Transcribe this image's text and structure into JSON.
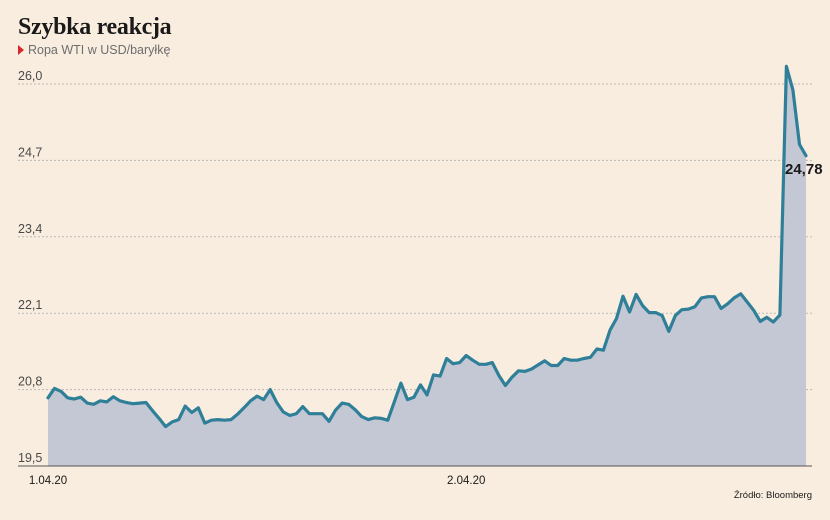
{
  "title": "Szybka reakcja",
  "subtitle": "Ropa WTI w USD/baryłkę",
  "source": "Źródło: Bloomberg",
  "colors": {
    "line": "#2f7f98",
    "fill": "#c3c8d4",
    "grid": "#b9b9b9",
    "marker": "#d9272e",
    "background": "#f9ede0"
  },
  "chart_data": {
    "type": "area",
    "ylim": [
      19.5,
      26.4
    ],
    "yticks": [
      "19,5",
      "20,8",
      "22,1",
      "23,4",
      "24,7",
      "26,0"
    ],
    "ytick_values": [
      19.5,
      20.8,
      22.1,
      23.4,
      24.7,
      26.0
    ],
    "xtick_labels": [
      {
        "index": 0,
        "label": "1.04.20"
      },
      {
        "index": 64,
        "label": "2.04.20"
      }
    ],
    "last_value_label": "24,78",
    "grid": true,
    "series": [
      {
        "values": [
          20.66,
          20.82,
          20.77,
          20.66,
          20.64,
          20.67,
          20.57,
          20.55,
          20.61,
          20.59,
          20.68,
          20.61,
          20.58,
          20.56,
          20.57,
          20.58,
          20.44,
          20.31,
          20.17,
          20.25,
          20.29,
          20.52,
          20.41,
          20.49,
          20.23,
          20.28,
          20.29,
          20.28,
          20.29,
          20.38,
          20.49,
          20.61,
          20.69,
          20.63,
          20.8,
          20.58,
          20.42,
          20.36,
          20.39,
          20.51,
          20.39,
          20.39,
          20.39,
          20.26,
          20.45,
          20.57,
          20.55,
          20.46,
          20.34,
          20.29,
          20.32,
          20.31,
          20.28,
          20.59,
          20.91,
          20.63,
          20.67,
          20.88,
          20.71,
          21.05,
          21.03,
          21.33,
          21.24,
          21.26,
          21.38,
          21.3,
          21.23,
          21.23,
          21.26,
          21.04,
          20.87,
          21.01,
          21.12,
          21.11,
          21.15,
          21.22,
          21.29,
          21.21,
          21.21,
          21.33,
          21.3,
          21.3,
          21.33,
          21.35,
          21.49,
          21.47,
          21.81,
          22.01,
          22.39,
          22.12,
          22.42,
          22.23,
          22.11,
          22.11,
          22.06,
          21.79,
          22.06,
          22.16,
          22.17,
          22.21,
          22.36,
          22.38,
          22.38,
          22.18,
          22.26,
          22.36,
          22.43,
          22.29,
          22.15,
          21.96,
          22.03,
          21.95,
          22.07,
          26.3,
          25.9,
          24.97,
          24.78
        ]
      }
    ]
  }
}
